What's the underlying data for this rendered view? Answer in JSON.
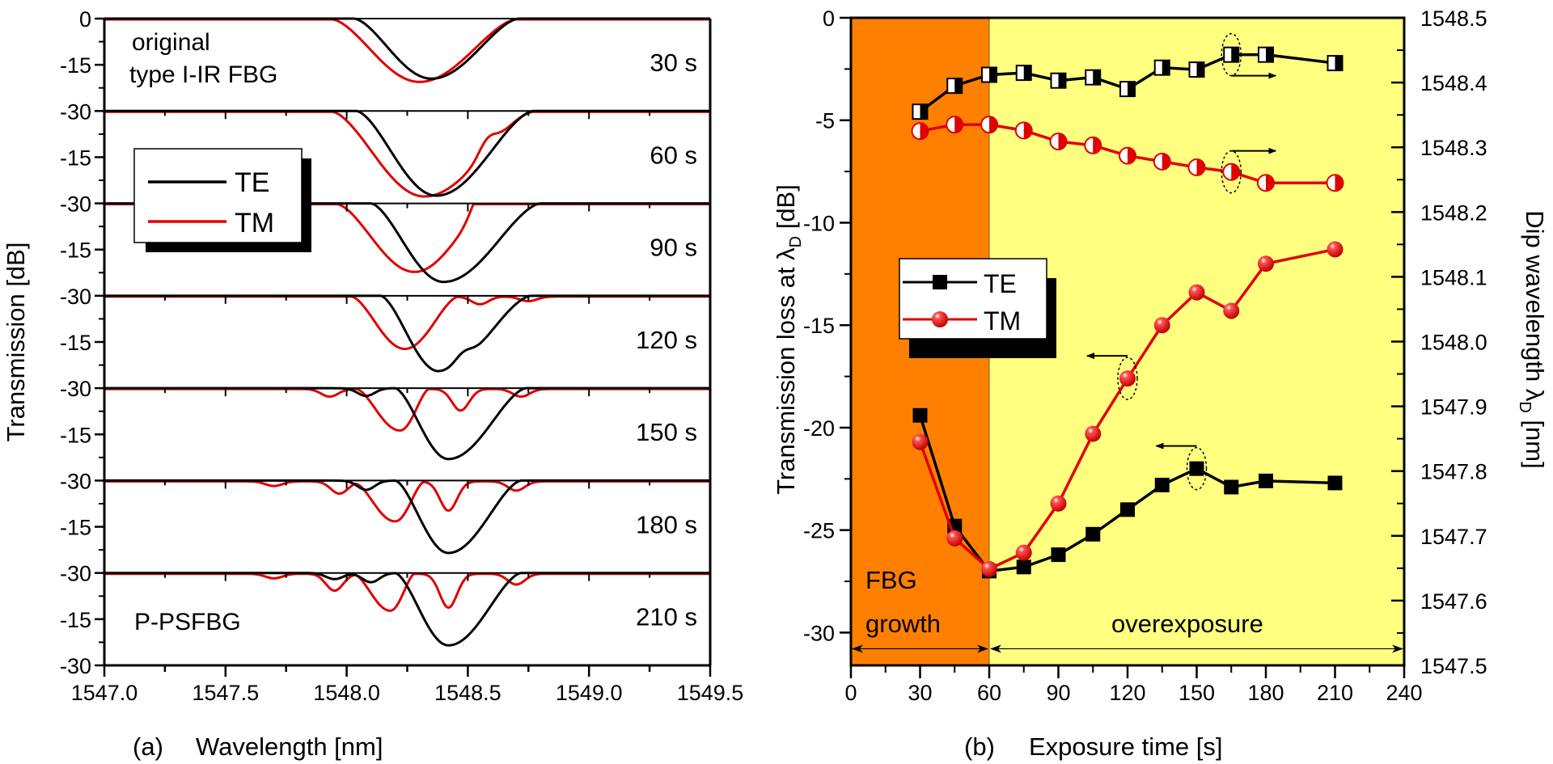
{
  "chart_data": [
    {
      "id": "a",
      "type": "line",
      "panel_label": "(a)",
      "xlabel": "Wavelength [nm]",
      "ylabel": "Transmission [dB]",
      "xlim": [
        1547.0,
        1549.5
      ],
      "x_ticks": [
        "1547.0",
        "1547.5",
        "1548.0",
        "1548.5",
        "1549.0",
        "1549.5"
      ],
      "y_range_per_panel": [
        -30,
        0
      ],
      "y_tick_labels_top_panel": [
        "0",
        "-15",
        "-30"
      ],
      "y_tick_labels_other_panels": [
        "-15",
        "-30"
      ],
      "legend": {
        "placement": "upper-left (panels 2-3)",
        "entries": [
          {
            "label": "TE",
            "color": "#000000"
          },
          {
            "label": "TM",
            "color": "#e00000"
          }
        ]
      },
      "annotations": [
        "original",
        "type I-IR FBG",
        "P-PSFBG"
      ],
      "panels": [
        {
          "label": "30 s",
          "TE": {
            "center": 1548.35,
            "depth": -19.5,
            "width_left": 0.32,
            "width_right": 0.36,
            "ripple": []
          },
          "TM": {
            "center": 1548.3,
            "depth": -20.3,
            "width_left": 0.36,
            "width_right": 0.4,
            "ripple": []
          }
        },
        {
          "label": "60 s",
          "TE": {
            "center": 1548.37,
            "depth": -27.5,
            "width_left": 0.33,
            "width_right": 0.4,
            "ripple": []
          },
          "TM": {
            "center": 1548.32,
            "depth": -27.5,
            "width_left": 0.38,
            "width_right": 0.45,
            "ripple": [
              {
                "x": 1548.58,
                "d": 4
              }
            ]
          }
        },
        {
          "label": "90 s",
          "TE": {
            "center": 1548.4,
            "depth": -25.5,
            "width_left": 0.3,
            "width_right": 0.4,
            "ripple": []
          },
          "TM": {
            "center": 1548.28,
            "depth": -22.0,
            "width_left": 0.32,
            "width_right": 0.32,
            "ripple": [
              {
                "x": 1548.55,
                "d": 6
              }
            ]
          }
        },
        {
          "label": "120 s",
          "TE": {
            "center": 1548.38,
            "depth": -24.5,
            "width_left": 0.24,
            "width_right": 0.38,
            "ripple": [
              {
                "x": 1548.48,
                "d": 3
              }
            ]
          },
          "TM": {
            "center": 1548.24,
            "depth": -17.0,
            "width_left": 0.22,
            "width_right": 0.22,
            "ripple": [
              {
                "x": 1548.55,
                "d": -2.5
              },
              {
                "x": 1548.75,
                "d": -1.5
              }
            ]
          }
        },
        {
          "label": "150 s",
          "TE": {
            "center": 1548.42,
            "depth": -23.0,
            "width_left": 0.22,
            "width_right": 0.32,
            "ripple": [
              {
                "x": 1548.08,
                "d": -2.5
              }
            ]
          },
          "TM": {
            "center": 1548.22,
            "depth": -13.5,
            "width_left": 0.18,
            "width_right": 0.12,
            "ripple": [
              {
                "x": 1548.47,
                "d": -7
              },
              {
                "x": 1548.72,
                "d": -2.5
              },
              {
                "x": 1547.93,
                "d": -2.5
              }
            ]
          }
        },
        {
          "label": "180 s",
          "TE": {
            "center": 1548.42,
            "depth": -23.5,
            "width_left": 0.22,
            "width_right": 0.3,
            "ripple": [
              {
                "x": 1548.08,
                "d": -3
              }
            ]
          },
          "TM": {
            "center": 1548.2,
            "depth": -13.0,
            "width_left": 0.17,
            "width_right": 0.12,
            "ripple": [
              {
                "x": 1548.42,
                "d": -9.5
              },
              {
                "x": 1548.7,
                "d": -3
              },
              {
                "x": 1547.97,
                "d": -4
              },
              {
                "x": 1547.7,
                "d": -1.5
              }
            ]
          }
        },
        {
          "label": "210 s",
          "TE": {
            "center": 1548.42,
            "depth": -23.5,
            "width_left": 0.22,
            "width_right": 0.3,
            "ripple": [
              {
                "x": 1548.1,
                "d": -3
              },
              {
                "x": 1547.95,
                "d": -2
              }
            ]
          },
          "TM": {
            "center": 1548.18,
            "depth": -12.0,
            "width_left": 0.15,
            "width_right": 0.1,
            "ripple": [
              {
                "x": 1548.42,
                "d": -11
              },
              {
                "x": 1548.7,
                "d": -3.5
              },
              {
                "x": 1547.95,
                "d": -5.5
              },
              {
                "x": 1547.7,
                "d": -1.5
              }
            ]
          }
        }
      ]
    },
    {
      "id": "b",
      "type": "line",
      "panel_label": "(b)",
      "xlabel": "Exposure time [s]",
      "ylabel_left": "Transmission loss at λD [dB]",
      "ylabel_right": "Dip wavelength λD [nm]",
      "xlim": [
        0,
        240
      ],
      "x_ticks": [
        0,
        30,
        60,
        90,
        120,
        150,
        180,
        210,
        240
      ],
      "ylim_left": [
        -31.6,
        0
      ],
      "y_ticks_left": [
        0,
        -5,
        -10,
        -15,
        -20,
        -25,
        -30
      ],
      "ylim_right": [
        1547.5,
        1548.5
      ],
      "y_ticks_right": [
        "1547.5",
        "1547.6",
        "1547.7",
        "1547.8",
        "1547.9",
        "1548.0",
        "1548.1",
        "1548.2",
        "1548.3",
        "1548.4",
        "1548.5"
      ],
      "regions": [
        {
          "label_lines": [
            "FBG",
            "growth"
          ],
          "x_from": 0,
          "x_to": 60,
          "color": "#ff8000"
        },
        {
          "label_lines": [
            "overexposure"
          ],
          "x_from": 60,
          "x_to": 240,
          "color": "#ffff80"
        }
      ],
      "legend": {
        "placement": "upper-left",
        "entries": [
          "TE",
          "TM"
        ]
      },
      "x": [
        30,
        45,
        60,
        75,
        90,
        105,
        120,
        135,
        150,
        165,
        180,
        210
      ],
      "series": [
        {
          "name": "TE",
          "axis": "left",
          "marker": "square-filled",
          "color": "#000000",
          "values": [
            -19.4,
            -24.8,
            -27.0,
            -26.8,
            -26.2,
            -25.2,
            -24.0,
            -22.8,
            -22.0,
            -22.9,
            -22.6,
            -22.7
          ]
        },
        {
          "name": "TM",
          "axis": "left",
          "marker": "sphere-filled",
          "color": "#e00000",
          "values": [
            -20.7,
            -25.4,
            -26.9,
            -26.1,
            -23.7,
            -20.3,
            -17.6,
            -15.0,
            -13.4,
            -14.3,
            -12.0,
            -11.3
          ]
        },
        {
          "name": "TE λD",
          "axis": "right",
          "marker": "square-half",
          "color": "#000000",
          "values": [
            1548.355,
            1548.395,
            1548.412,
            1548.415,
            1548.403,
            1548.408,
            1548.39,
            1548.423,
            1548.42,
            1548.443,
            1548.443,
            1548.43
          ]
        },
        {
          "name": "TM λD",
          "axis": "right",
          "marker": "circle-half",
          "color": "#e00000",
          "values": [
            1548.325,
            1548.335,
            1548.335,
            1548.326,
            1548.309,
            1548.303,
            1548.287,
            1548.278,
            1548.269,
            1548.262,
            1548.245,
            1548.245
          ]
        }
      ],
      "axis_indicators": [
        {
          "series": "TE λD",
          "x": 165,
          "direction": "right"
        },
        {
          "series": "TM λD",
          "x": 165,
          "direction": "right"
        },
        {
          "series": "TM",
          "x": 120,
          "direction": "left"
        },
        {
          "series": "TE",
          "x": 150,
          "direction": "left"
        }
      ]
    }
  ]
}
